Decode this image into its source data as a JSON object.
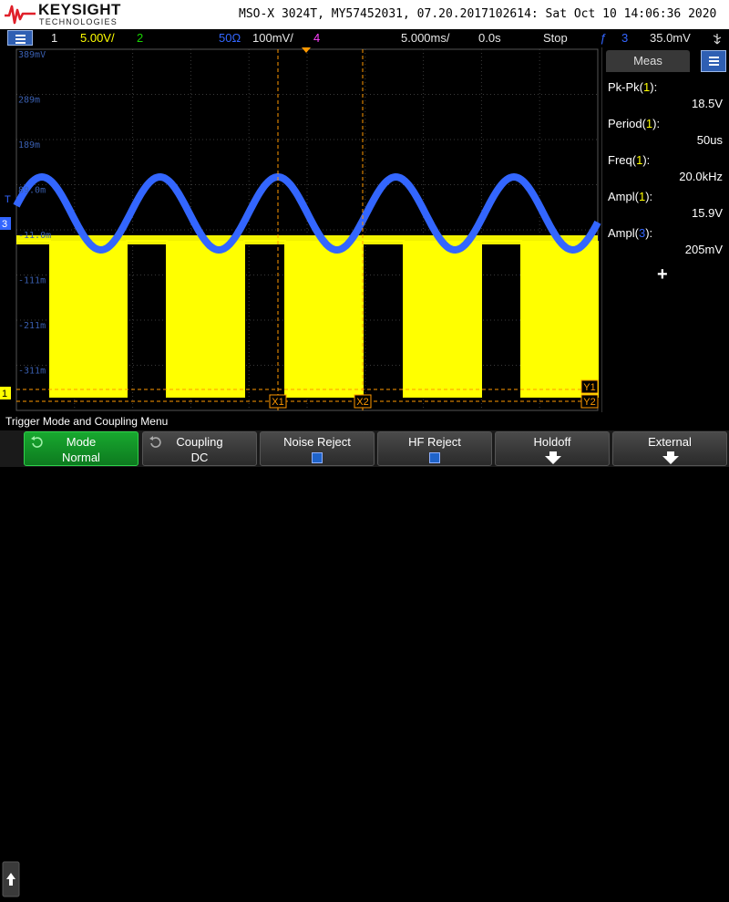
{
  "header": {
    "brand": "KEYSIGHT",
    "brand_sub": "TECHNOLOGIES",
    "title": "MSO-X 3024T, MY57452031, 07.20.2017102614: Sat Oct 10 14:06:36 2020"
  },
  "status": {
    "ch1_num": "1",
    "ch1_scale": "5.00V/",
    "ch2_num": "2",
    "ch3_imp": "50Ω",
    "ch3_scale": "100mV/",
    "ch4_num": "4",
    "timebase": "5.000ms/",
    "delay": "0.0s",
    "run_state": "Stop",
    "trig_icon": "ƒ",
    "trig_src": "3",
    "trig_level": "35.0mV"
  },
  "scope": {
    "gridlabels": [
      "389mV",
      "289m",
      "189m",
      "89.0m",
      "-11.0m",
      "-111m",
      "-211m",
      "-311m"
    ],
    "markers": [
      "X1",
      "X2",
      "Y1",
      "Y2"
    ],
    "ch1_color": "#ffff00",
    "ch3_color": "#3366ff",
    "cursor_color": "#ff9900",
    "t_marker": "T",
    "ch3_marker": "3",
    "ch1_marker": "1"
  },
  "meas": {
    "header": "Meas",
    "items": [
      {
        "label": "Pk-Pk",
        "ch": "1",
        "value": "18.5V"
      },
      {
        "label": "Period",
        "ch": "1",
        "value": "50us"
      },
      {
        "label": "Freq",
        "ch": "1",
        "value": "20.0kHz"
      },
      {
        "label": "Ampl",
        "ch": "1",
        "value": "15.9V"
      },
      {
        "label": "Ampl",
        "ch": "3",
        "value": "205mV"
      }
    ],
    "add_symbol": "+"
  },
  "menu": {
    "title": "Trigger Mode and Coupling Menu",
    "softkeys": [
      {
        "label": "Mode",
        "value": "Normal"
      },
      {
        "label": "Coupling",
        "value": "DC"
      },
      {
        "label": "Noise Reject",
        "value": ""
      },
      {
        "label": "HF Reject",
        "value": ""
      },
      {
        "label": "Holdoff",
        "value": ""
      },
      {
        "label": "External",
        "value": ""
      }
    ]
  }
}
